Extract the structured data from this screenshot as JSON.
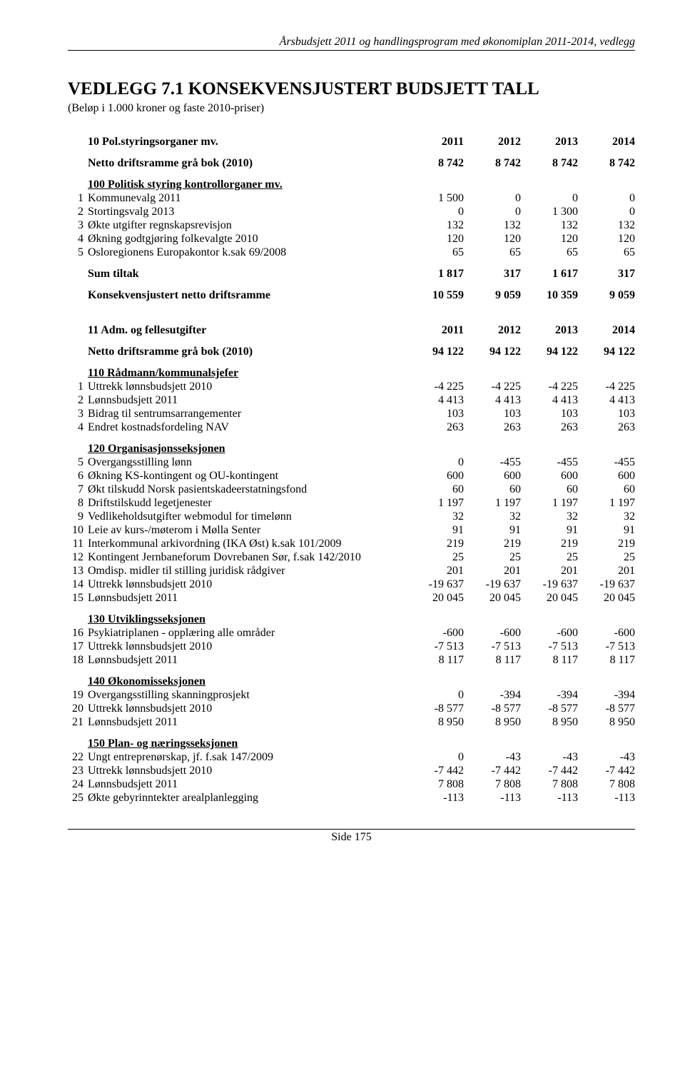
{
  "header": "Årsbudsjett 2011 og handlingsprogram med økonomiplan 2011-2014, vedlegg",
  "title": "VEDLEGG 7.1 KONSEKVENSJUSTERT BUDSJETT TALL",
  "subtitle": "(Beløp i 1.000 kroner og faste 2010-priser)",
  "years": [
    "2011",
    "2012",
    "2013",
    "2014"
  ],
  "section1": {
    "title": "10 Pol.styringsorganer mv.",
    "netto_label": "Netto driftsramme grå bok (2010)",
    "netto_vals": [
      "8 742",
      "8 742",
      "8 742",
      "8 742"
    ],
    "group_label": "100 Politisk styring kontrollorganer mv.",
    "rows": [
      {
        "n": "1",
        "label": "Kommunevalg 2011",
        "v": [
          "1 500",
          "0",
          "0",
          "0"
        ]
      },
      {
        "n": "2",
        "label": "Stortingsvalg 2013",
        "v": [
          "0",
          "0",
          "1 300",
          "0"
        ]
      },
      {
        "n": "3",
        "label": "Økte utgifter regnskapsrevisjon",
        "v": [
          "132",
          "132",
          "132",
          "132"
        ]
      },
      {
        "n": "4",
        "label": "Økning godtgjøring folkevalgte 2010",
        "v": [
          "120",
          "120",
          "120",
          "120"
        ]
      },
      {
        "n": "5",
        "label": "Osloregionens Europakontor k.sak 69/2008",
        "v": [
          "65",
          "65",
          "65",
          "65"
        ]
      }
    ],
    "sum_label": "Sum tiltak",
    "sum_vals": [
      "1 817",
      "317",
      "1 617",
      "317"
    ],
    "kons_label": "Konsekvensjustert netto driftsramme",
    "kons_vals": [
      "10 559",
      "9 059",
      "10 359",
      "9 059"
    ]
  },
  "section2": {
    "title": "11 Adm. og fellesutgifter",
    "netto_label": "Netto driftsramme grå bok (2010)",
    "netto_vals": [
      "94 122",
      "94 122",
      "94 122",
      "94 122"
    ],
    "groups": [
      {
        "label": "110 Rådmann/kommunalsjefer",
        "rows": [
          {
            "n": "1",
            "label": "Uttrekk lønnsbudsjett 2010",
            "v": [
              "-4 225",
              "-4 225",
              "-4 225",
              "-4 225"
            ]
          },
          {
            "n": "2",
            "label": "Lønnsbudsjett 2011",
            "v": [
              "4 413",
              "4 413",
              "4 413",
              "4 413"
            ]
          },
          {
            "n": "3",
            "label": "Bidrag til sentrumsarrangementer",
            "v": [
              "103",
              "103",
              "103",
              "103"
            ]
          },
          {
            "n": "4",
            "label": "Endret kostnadsfordeling NAV",
            "v": [
              "263",
              "263",
              "263",
              "263"
            ]
          }
        ]
      },
      {
        "label": "120 Organisasjonsseksjonen",
        "rows": [
          {
            "n": "5",
            "label": "Overgangsstilling lønn",
            "v": [
              "0",
              "-455",
              "-455",
              "-455"
            ]
          },
          {
            "n": "6",
            "label": "Økning KS-kontingent og OU-kontingent",
            "v": [
              "600",
              "600",
              "600",
              "600"
            ]
          },
          {
            "n": "7",
            "label": "Økt tilskudd Norsk pasientskadeerstatningsfond",
            "v": [
              "60",
              "60",
              "60",
              "60"
            ]
          },
          {
            "n": "8",
            "label": "Driftstilskudd legetjenester",
            "v": [
              "1 197",
              "1 197",
              "1 197",
              "1 197"
            ]
          },
          {
            "n": "9",
            "label": "Vedlikeholdsutgifter webmodul for timelønn",
            "v": [
              "32",
              "32",
              "32",
              "32"
            ]
          },
          {
            "n": "10",
            "label": "Leie av kurs-/møterom i Mølla Senter",
            "v": [
              "91",
              "91",
              "91",
              "91"
            ]
          },
          {
            "n": "11",
            "label": "Interkommunal arkivordning (IKA Øst) k.sak 101/2009",
            "v": [
              "219",
              "219",
              "219",
              "219"
            ]
          },
          {
            "n": "12",
            "label": "Kontingent Jernbaneforum Dovrebanen Sør, f.sak 142/2010",
            "v": [
              "25",
              "25",
              "25",
              "25"
            ]
          },
          {
            "n": "13",
            "label": "Omdisp. midler til stilling juridisk rådgiver",
            "v": [
              "201",
              "201",
              "201",
              "201"
            ]
          },
          {
            "n": "14",
            "label": "Uttrekk lønnsbudsjett 2010",
            "v": [
              "-19 637",
              "-19 637",
              "-19 637",
              "-19 637"
            ]
          },
          {
            "n": "15",
            "label": "Lønnsbudsjett 2011",
            "v": [
              "20 045",
              "20 045",
              "20 045",
              "20 045"
            ]
          }
        ]
      },
      {
        "label": "130 Utviklingsseksjonen",
        "rows": [
          {
            "n": "16",
            "label": "Psykiatriplanen - opplæring alle områder",
            "v": [
              "-600",
              "-600",
              "-600",
              "-600"
            ]
          },
          {
            "n": "17",
            "label": "Uttrekk lønnsbudsjett 2010",
            "v": [
              "-7 513",
              "-7 513",
              "-7 513",
              "-7 513"
            ]
          },
          {
            "n": "18",
            "label": "Lønnsbudsjett 2011",
            "v": [
              "8 117",
              "8 117",
              "8 117",
              "8 117"
            ]
          }
        ]
      },
      {
        "label": "140 Økonomisseksjonen",
        "rows": [
          {
            "n": "19",
            "label": "Overgangsstilling skanningprosjekt",
            "v": [
              "0",
              "-394",
              "-394",
              "-394"
            ]
          },
          {
            "n": "20",
            "label": "Uttrekk lønnsbudsjett 2010",
            "v": [
              "-8 577",
              "-8 577",
              "-8 577",
              "-8 577"
            ]
          },
          {
            "n": "21",
            "label": "Lønnsbudsjett 2011",
            "v": [
              "8 950",
              "8 950",
              "8 950",
              "8 950"
            ]
          }
        ]
      },
      {
        "label": "150 Plan- og næringsseksjonen",
        "rows": [
          {
            "n": "22",
            "label": "Ungt entreprenørskap, jf. f.sak 147/2009",
            "v": [
              "0",
              "-43",
              "-43",
              "-43"
            ]
          },
          {
            "n": "23",
            "label": "Uttrekk lønnsbudsjett 2010",
            "v": [
              "-7 442",
              "-7 442",
              "-7 442",
              "-7 442"
            ]
          },
          {
            "n": "24",
            "label": "Lønnsbudsjett 2011",
            "v": [
              "7 808",
              "7 808",
              "7 808",
              "7 808"
            ]
          },
          {
            "n": "25",
            "label": "Økte gebyrinntekter arealplanlegging",
            "v": [
              "-113",
              "-113",
              "-113",
              "-113"
            ]
          }
        ]
      }
    ]
  },
  "footer": "Side 175"
}
